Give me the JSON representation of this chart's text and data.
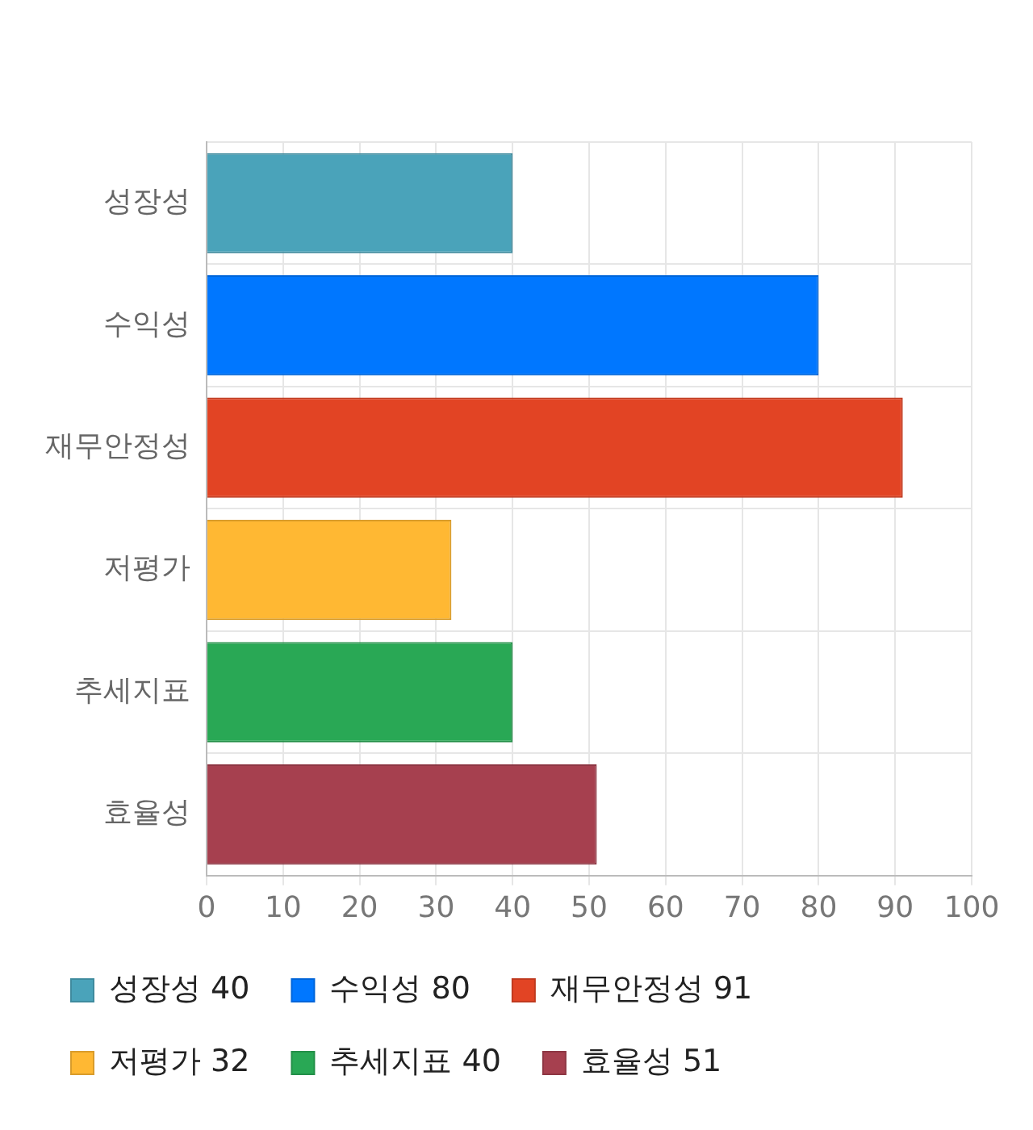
{
  "chart_data": {
    "type": "bar",
    "orientation": "horizontal",
    "categories": [
      "성장성",
      "수익성",
      "재무안정성",
      "저평가",
      "추세지표",
      "효율성"
    ],
    "series": [
      {
        "name": "성장성 40",
        "color": "#4aa3ba",
        "values": [
          40,
          null,
          null,
          null,
          null,
          null
        ]
      },
      {
        "name": "수익성 80",
        "color": "#0077ff",
        "values": [
          null,
          80,
          null,
          null,
          null,
          null
        ]
      },
      {
        "name": "재무안정성 91",
        "color": "#e24424",
        "values": [
          null,
          null,
          91,
          null,
          null,
          null
        ]
      },
      {
        "name": "저평가 32",
        "color": "#ffb833",
        "values": [
          null,
          null,
          null,
          32,
          null,
          null
        ]
      },
      {
        "name": "추세지표 40",
        "color": "#29a855",
        "values": [
          null,
          null,
          null,
          null,
          40,
          null
        ]
      },
      {
        "name": "효율성 51",
        "color": "#a6404f",
        "values": [
          null,
          null,
          null,
          null,
          null,
          51
        ]
      }
    ],
    "xlim": [
      0,
      100
    ],
    "xticks": [
      0,
      10,
      20,
      30,
      40,
      50,
      60,
      70,
      80,
      90,
      100
    ],
    "grid": true,
    "legend": "bottom"
  }
}
